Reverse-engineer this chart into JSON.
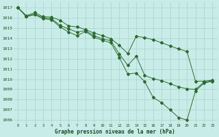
{
  "title": "Graphe pression niveau de la mer (hPa)",
  "x_hours": [
    0,
    1,
    2,
    3,
    4,
    5,
    6,
    7,
    8,
    9,
    10,
    11,
    12,
    13,
    14,
    15,
    16,
    17,
    18,
    19,
    20,
    21,
    22,
    23
  ],
  "line_upper": [
    1017.0,
    1016.2,
    1016.5,
    1016.1,
    1016.05,
    1015.7,
    1015.2,
    1015.1,
    1014.85,
    1014.5,
    1014.2,
    1013.9,
    1013.3,
    1012.5,
    1014.2,
    1014.1,
    1013.9,
    1013.6,
    1013.3,
    1013.0,
    1012.8,
    1009.8,
    1009.8,
    1009.9
  ],
  "line_mid": [
    1017.0,
    1016.15,
    1016.35,
    1016.05,
    1015.9,
    1015.3,
    1014.9,
    1014.6,
    1014.75,
    1014.3,
    1014.0,
    1013.75,
    1012.5,
    1011.4,
    1012.3,
    1010.4,
    1010.1,
    1010.0,
    1009.8,
    1009.5,
    1009.3,
    1009.0,
    1009.7,
    1009.85
  ],
  "line_lower": [
    1017.0,
    1016.1,
    1016.3,
    1015.95,
    1015.85,
    1015.15,
    1014.6,
    1014.3,
    1014.65,
    1014.1,
    1013.8,
    1013.55,
    1012.1,
    1010.5,
    1010.6,
    1009.8,
    1008.2,
    1007.7,
    1007.0,
    1006.25,
    1006.0,
    1008.9,
    1009.6,
    1009.8
  ],
  "ylim_min": 1006,
  "ylim_max": 1017.5,
  "yticks": [
    1006,
    1007,
    1008,
    1009,
    1010,
    1011,
    1012,
    1013,
    1014,
    1015,
    1016,
    1017
  ],
  "xticks": [
    0,
    1,
    2,
    3,
    4,
    5,
    6,
    7,
    8,
    9,
    10,
    11,
    12,
    13,
    14,
    15,
    16,
    17,
    18,
    19,
    20,
    21,
    22,
    23
  ],
  "line_color": "#2d6a2d",
  "bg_color": "#c8ede8",
  "grid_color": "#aacfca",
  "label_color": "#1a4a1a"
}
